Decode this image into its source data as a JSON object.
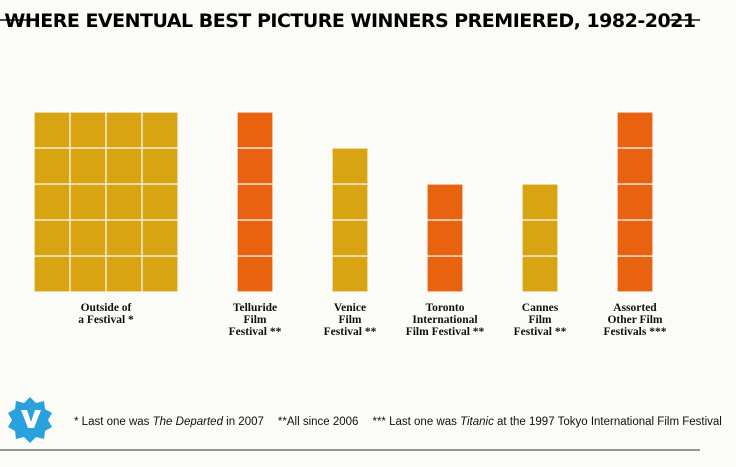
{
  "chart_data": {
    "type": "unit",
    "title": "WHERE EVENTUAL BEST PICTURE WINNERS PREMIERED, 1982-2021",
    "categories": [
      "Outside of\na Festival *",
      "Telluride\nFilm\nFestival **",
      "Venice\nFilm\nFestival **",
      "Toronto\nInternational\nFilm Festival **",
      "Cannes\nFilm\nFestival **",
      "Assorted\nOther Film\nFestivals ***"
    ],
    "values": [
      20,
      5,
      4,
      3,
      3,
      5
    ],
    "colors": [
      "#d8a412",
      "#e8620f",
      "#d8a412",
      "#e8620f",
      "#d8a412",
      "#e8620f"
    ],
    "footnotes": [
      [
        "* Last one was ",
        "The Departed",
        " in 2007"
      ],
      [
        "**All since 2006"
      ],
      [
        "*** Last one was ",
        "Titanic",
        " at the 1997 Tokyo International Film Festival"
      ]
    ]
  }
}
